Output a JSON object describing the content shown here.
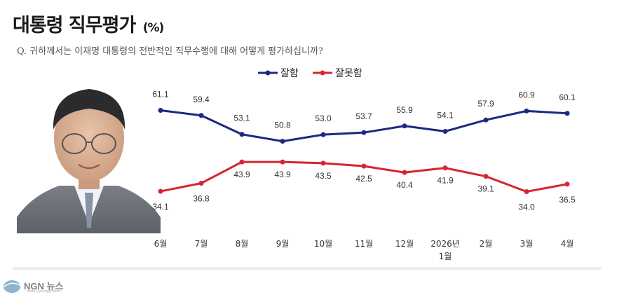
{
  "header": {
    "title": "대통령 직무평가",
    "title_unit": "(%)",
    "question": "Q. 귀하께서는 이재명 대통령의 전반적인 직무수행에 대해 어떻게 평가하십니까?"
  },
  "portrait_icon": "person-photo",
  "logo": {
    "text": "NGN 뉴스",
    "sub": "North Gyeonggi News"
  },
  "colors": {
    "approve": "#1a2a80",
    "disapprove": "#d62432"
  },
  "chart_data": {
    "type": "line",
    "categories": [
      "6월",
      "7월",
      "8월",
      "9월",
      "10월",
      "11월",
      "12월",
      "2026년 1월",
      "2월",
      "3월",
      "4월"
    ],
    "category_lines": [
      [
        "6월"
      ],
      [
        "7월"
      ],
      [
        "8월"
      ],
      [
        "9월"
      ],
      [
        "10월"
      ],
      [
        "11월"
      ],
      [
        "12월"
      ],
      [
        "2026년",
        "1월"
      ],
      [
        "2월"
      ],
      [
        "3월"
      ],
      [
        "4월"
      ]
    ],
    "series": [
      {
        "name": "잘함",
        "values": [
          61.1,
          59.4,
          53.1,
          50.8,
          53.0,
          53.7,
          55.9,
          54.1,
          57.9,
          60.9,
          60.1
        ],
        "labels": [
          "61.1",
          "59.4",
          "53.1",
          "50.8",
          "53.0",
          "53.7",
          "55.9",
          "54.1",
          "57.9",
          "60.9",
          "60.1"
        ]
      },
      {
        "name": "잘못함",
        "values": [
          34.1,
          36.8,
          43.9,
          43.9,
          43.5,
          42.5,
          40.4,
          41.9,
          39.1,
          34.0,
          36.5
        ],
        "labels": [
          "34.1",
          "36.8",
          "43.9",
          "43.9",
          "43.5",
          "42.5",
          "40.4",
          "41.9",
          "39.1",
          "34.0",
          "36.5"
        ]
      }
    ],
    "title": "대통령 직무평가 (%)",
    "legend_position": "top-center",
    "grid": false
  }
}
